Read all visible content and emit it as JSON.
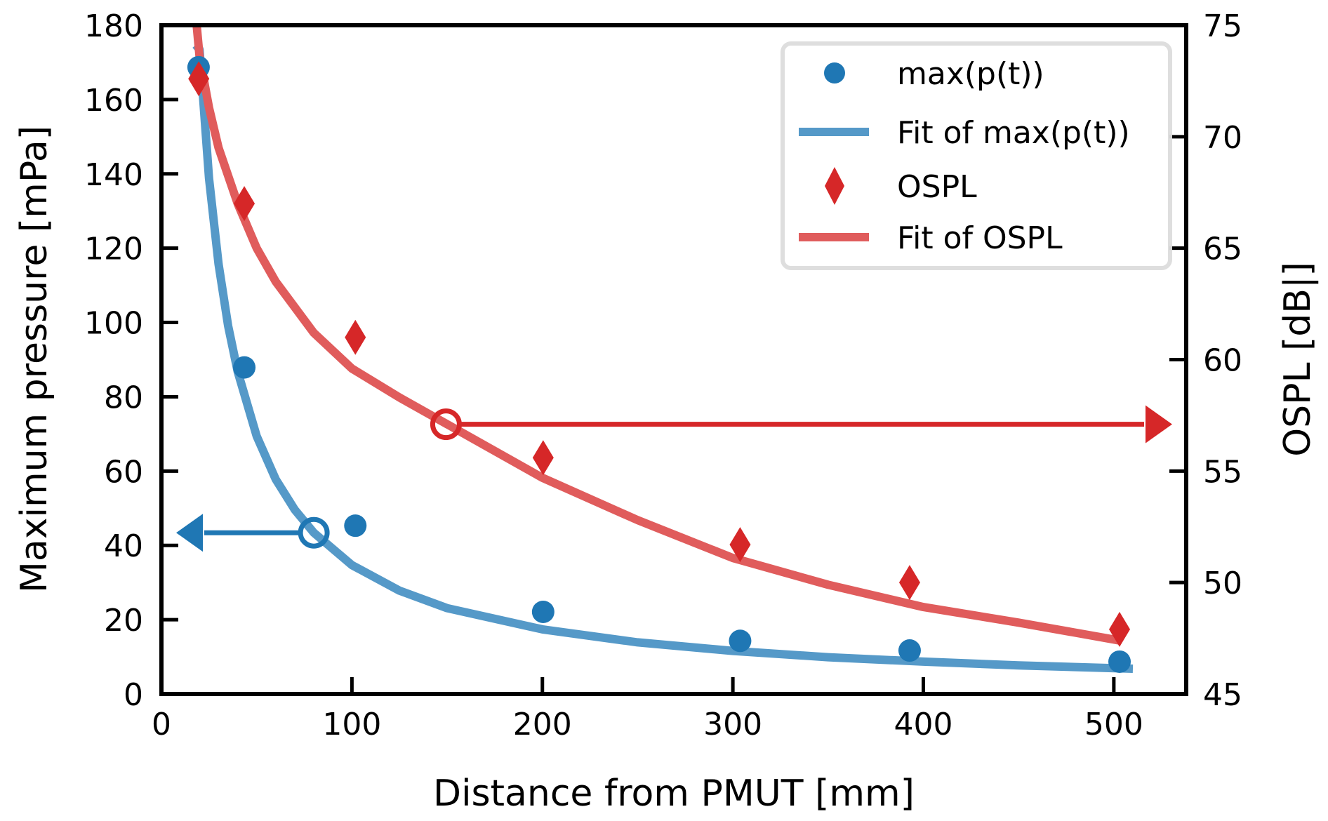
{
  "chart_data": {
    "type": "scatter",
    "title": "",
    "xlabel": "Distance from PMUT [mm]",
    "ylabel": "Maximum pressure [mPa]",
    "y2label": "OSPL [dB|]",
    "xlim": [
      0,
      538
    ],
    "ylim": [
      0,
      180
    ],
    "y2lim": [
      45,
      75
    ],
    "xticks": [
      0,
      100,
      200,
      300,
      400,
      500
    ],
    "xtick_labels": [
      "0",
      "100",
      "200",
      "300",
      "400",
      "500"
    ],
    "yticks": [
      0,
      20,
      40,
      60,
      80,
      100,
      120,
      140,
      160,
      180
    ],
    "ytick_labels": [
      "0",
      "20",
      "40",
      "60",
      "80",
      "100",
      "120",
      "140",
      "160",
      "180"
    ],
    "y2ticks": [
      45,
      50,
      55,
      60,
      65,
      70,
      75
    ],
    "y2tick_labels": [
      "45",
      "50",
      "55",
      "60",
      "65",
      "70",
      "75"
    ],
    "grid": false,
    "legend_position": "top-right",
    "series": [
      {
        "name": "max(p(t))",
        "kind": "scatter",
        "marker": "circle",
        "axis": "left",
        "color": "#1f77b4",
        "x": [
          19.5,
          43.5,
          101.8,
          200.4,
          303.8,
          392.8,
          503
        ],
        "y": [
          168.7,
          87.9,
          45.3,
          22.1,
          14.3,
          11.7,
          8.7
        ]
      },
      {
        "name": "Fit of max(p(t))",
        "kind": "line",
        "axis": "left",
        "color": "#5599c8",
        "x": [
          18,
          20,
          25,
          30,
          35,
          40,
          50,
          60,
          70,
          80,
          100,
          125,
          150,
          200,
          250,
          300,
          350,
          400,
          450,
          510
        ],
        "y": [
          174.7,
          173.5,
          138.8,
          115.7,
          99.1,
          86.8,
          69.4,
          57.8,
          49.6,
          43.4,
          34.7,
          27.8,
          23.1,
          17.4,
          13.9,
          11.6,
          9.9,
          8.7,
          7.7,
          6.8
        ]
      },
      {
        "name": "OSPL",
        "kind": "scatter",
        "marker": "diamond",
        "axis": "right",
        "color": "#d62728",
        "x": [
          19.6,
          43.5,
          101.8,
          200.4,
          303.8,
          392.8,
          503
        ],
        "y": [
          72.6,
          67.0,
          61.0,
          55.6,
          51.7,
          50.0,
          47.9
        ]
      },
      {
        "name": "Fit of OSPL",
        "kind": "line",
        "axis": "right",
        "color": "#e05c5c",
        "x": [
          18.5,
          20,
          25,
          30,
          40,
          50,
          60,
          80,
          100,
          125,
          150,
          200,
          250,
          300,
          350,
          400,
          450,
          503
        ],
        "y": [
          75.0,
          73.6,
          71.3,
          69.5,
          67.0,
          65.0,
          63.5,
          61.2,
          59.6,
          58.3,
          57.1,
          54.7,
          52.8,
          51.1,
          49.9,
          48.9,
          48.2,
          47.4
        ]
      }
    ],
    "annotations": [
      {
        "name": "pressure-readout",
        "axis": "left",
        "color": "#1f77b4",
        "x": 80,
        "y": 43.4,
        "arrow_to": "left-axis"
      },
      {
        "name": "ospl-readout",
        "axis": "right",
        "color": "#d62728",
        "x": 149.4,
        "y": 57.1,
        "arrow_to": "right-axis"
      }
    ]
  }
}
